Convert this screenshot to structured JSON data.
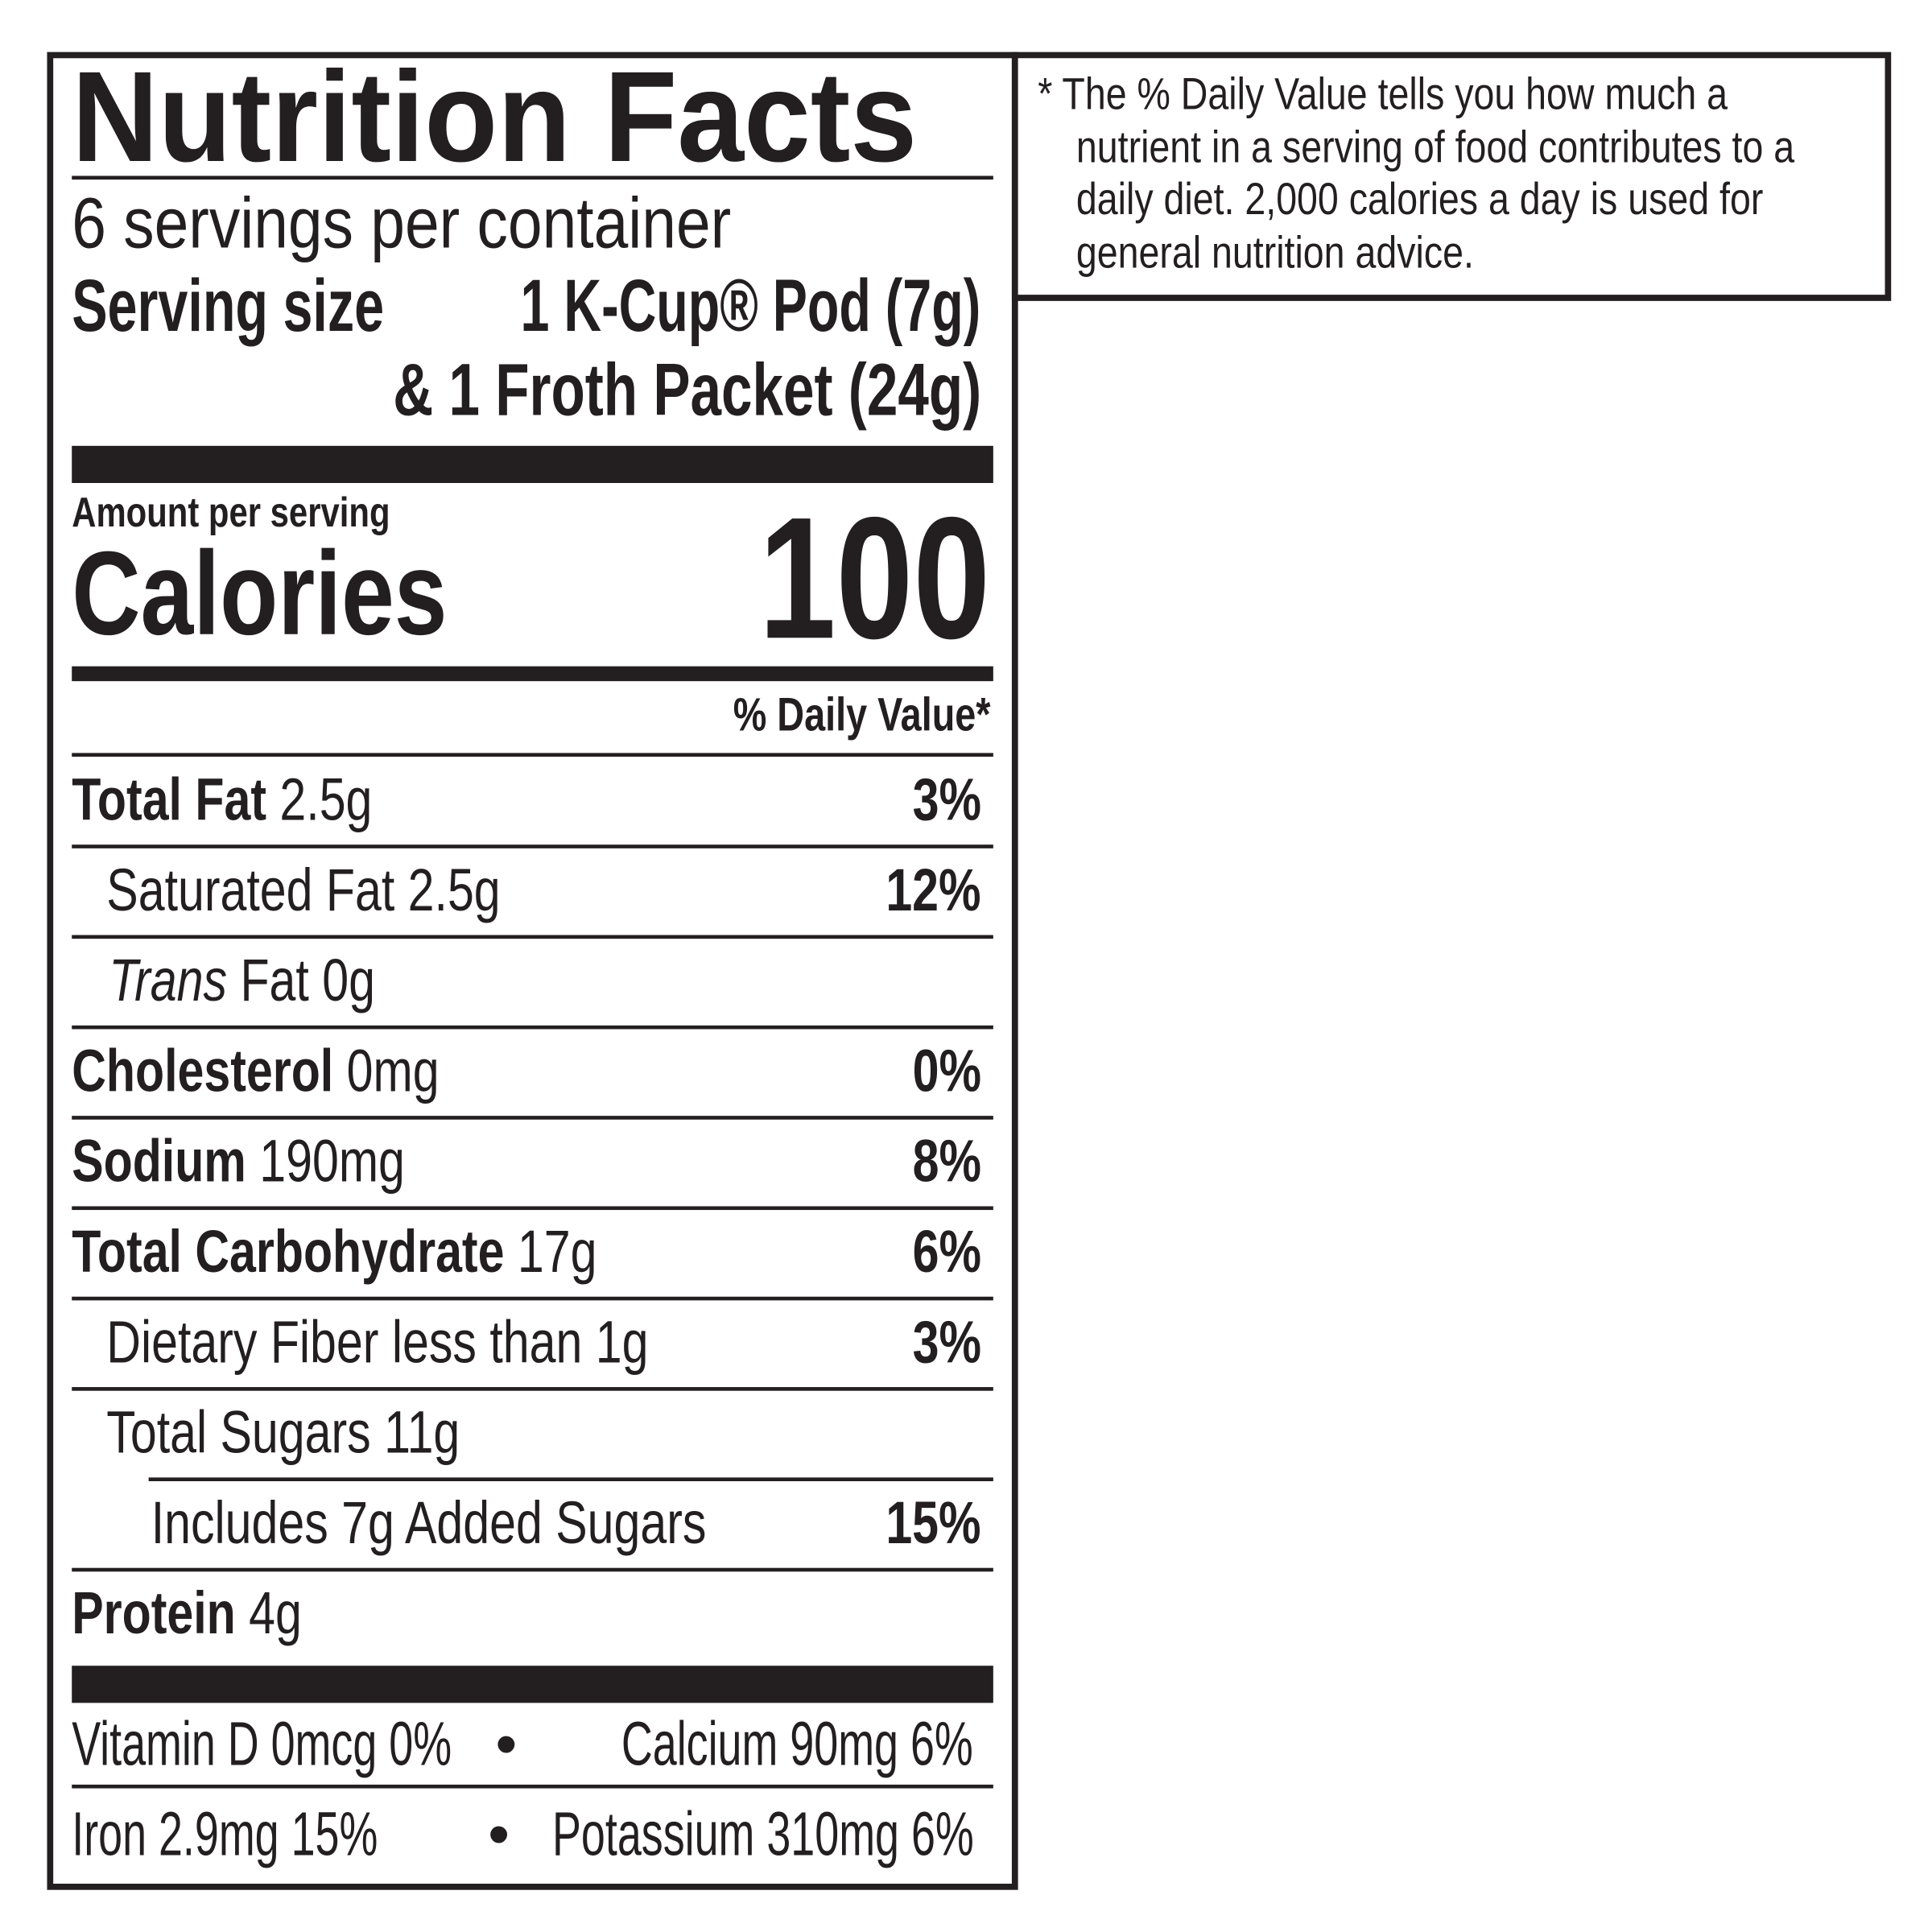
{
  "label": {
    "title": "Nutrition Facts",
    "servings_per_container": "6 servings per container",
    "serving_size_label": "Serving size",
    "serving_size_line1": "1 K-Cup® Pod (7g)",
    "serving_size_line2": "& 1 Froth Packet (24g)",
    "amount_per_serving": "Amount per serving",
    "calories_label": "Calories",
    "calories_value": "100",
    "daily_value_header": "% Daily Value*",
    "nutrients": [
      {
        "name": "Total Fat",
        "amount": "2.5g",
        "dv": "3%"
      },
      {
        "name": "Saturated Fat 2.5g",
        "amount": "",
        "dv": "12%"
      },
      {
        "name": "Trans",
        "amount": "Fat 0g",
        "dv": ""
      },
      {
        "name": "Cholesterol",
        "amount": "0mg",
        "dv": "0%"
      },
      {
        "name": "Sodium",
        "amount": "190mg",
        "dv": "8%"
      },
      {
        "name": "Total Carbohydrate",
        "amount": "17g",
        "dv": "6%"
      },
      {
        "name": "Dietary Fiber less than 1g",
        "amount": "",
        "dv": "3%"
      },
      {
        "name": "Total Sugars 11g",
        "amount": "",
        "dv": ""
      },
      {
        "name": "Includes 7g Added Sugars",
        "amount": "",
        "dv": "15%"
      },
      {
        "name": "Protein",
        "amount": "4g",
        "dv": ""
      }
    ],
    "vitamins": {
      "vitamin_d": "Vitamin D 0mcg 0%",
      "calcium": "Calcium 90mg 6%",
      "iron": "Iron 2.9mg 15%",
      "potassium": "Potassium 310mg 6%",
      "bullet": "•"
    }
  },
  "footnote": {
    "line1": "* The % Daily Value tells you how much a",
    "line2": "nutrient in a serving of food contributes to a",
    "line3": "daily diet. 2,000 calories a day is used for",
    "line4": "general nutrition advice."
  }
}
